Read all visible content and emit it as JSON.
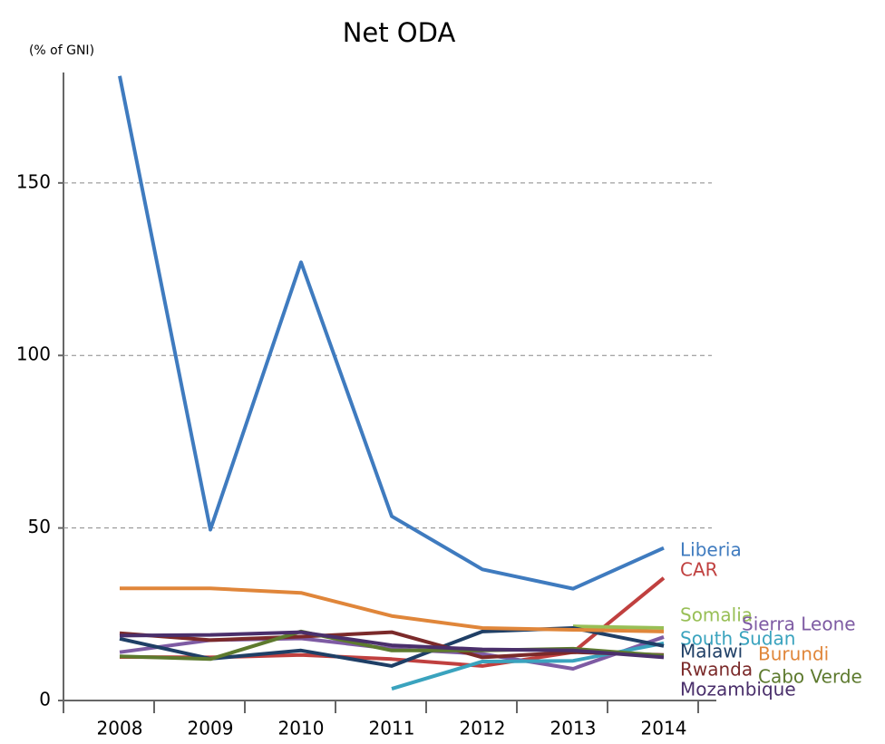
{
  "chart_data": {
    "type": "line",
    "title": "Net ODA",
    "y_label": "(% of GNI)",
    "categories": [
      "2008",
      "2009",
      "2010",
      "2011",
      "2012",
      "2013",
      "2014"
    ],
    "ylim": [
      0,
      182
    ],
    "yticks": [
      0,
      50,
      100,
      150
    ],
    "grid": true,
    "series": [
      {
        "name": "Liberia",
        "color": "#3f7bbf",
        "values": [
          181,
          49.5,
          127,
          53.4,
          38,
          32.4,
          44.2
        ]
      },
      {
        "name": "CAR",
        "color": "#c0403f",
        "values": [
          12.6,
          12.5,
          13.2,
          12,
          10,
          14,
          35.5
        ]
      },
      {
        "name": "Somalia",
        "color": "#98bf56",
        "values": [
          null,
          null,
          null,
          null,
          null,
          21.5,
          21
        ]
      },
      {
        "name": "Sierra Leone",
        "color": "#7e5ba3",
        "values": [
          14,
          17.5,
          18,
          15,
          13.5,
          9.2,
          18.4
        ]
      },
      {
        "name": "South Sudan",
        "color": "#3aa3be",
        "values": [
          null,
          null,
          null,
          3.4,
          11.3,
          11.5,
          16.6
        ]
      },
      {
        "name": "Malawi",
        "color": "#1f3f66",
        "values": [
          17.9,
          12.1,
          14.5,
          10,
          20,
          21,
          15.8
        ]
      },
      {
        "name": "Burundi",
        "color": "#e0863a",
        "values": [
          32.5,
          32.5,
          31.2,
          24.5,
          21,
          20.5,
          20
        ]
      },
      {
        "name": "Rwanda",
        "color": "#7b2a2a",
        "values": [
          19.5,
          17.5,
          18.5,
          19.8,
          12.5,
          14,
          13.2
        ]
      },
      {
        "name": "Cabo Verde",
        "color": "#5d7a2e",
        "values": [
          12.8,
          12,
          20,
          14.5,
          14.5,
          15,
          13
        ]
      },
      {
        "name": "Mozambique",
        "color": "#4a2f6b",
        "values": [
          18.8,
          19,
          19.8,
          16,
          14.8,
          14.5,
          12.5
        ]
      }
    ]
  }
}
